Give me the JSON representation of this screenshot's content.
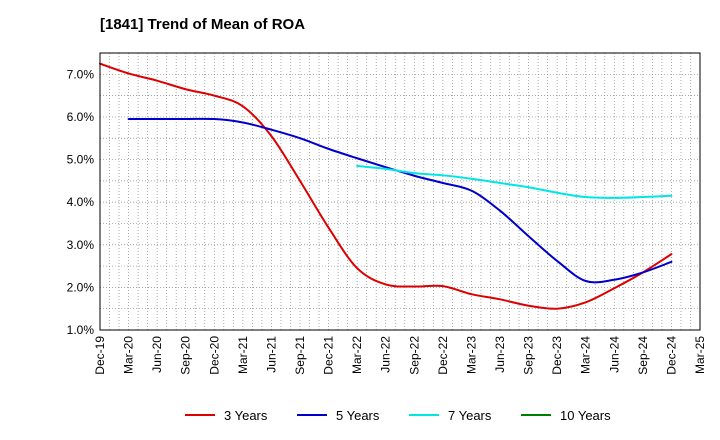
{
  "chart_data": {
    "type": "line",
    "title": "[1841]  Trend of Mean of ROA",
    "xlabel": "",
    "ylabel": "",
    "ylim": [
      1.0,
      7.5
    ],
    "yticks": [
      "1.0%",
      "2.0%",
      "3.0%",
      "4.0%",
      "5.0%",
      "6.0%",
      "7.0%"
    ],
    "ytick_values": [
      1,
      2,
      3,
      4,
      5,
      6,
      7
    ],
    "grid": true,
    "legend_position": "bottom",
    "categories": [
      "Dec-19",
      "Mar-20",
      "Jun-20",
      "Sep-20",
      "Dec-20",
      "Mar-21",
      "Jun-21",
      "Sep-21",
      "Dec-21",
      "Mar-22",
      "Jun-22",
      "Sep-22",
      "Dec-22",
      "Mar-23",
      "Jun-23",
      "Sep-23",
      "Dec-23",
      "Mar-24",
      "Jun-24",
      "Sep-24",
      "Dec-24",
      "Mar-25"
    ],
    "series": [
      {
        "name": "3 Years",
        "color": "#dd0000",
        "values": [
          7.25,
          7.02,
          6.85,
          6.65,
          6.5,
          6.25,
          5.55,
          4.5,
          3.4,
          2.45,
          2.07,
          2.02,
          2.03,
          1.84,
          1.72,
          1.57,
          1.5,
          1.65,
          1.98,
          2.35,
          2.78,
          null
        ]
      },
      {
        "name": "5 Years",
        "color": "#0000cc",
        "values": [
          null,
          5.95,
          5.95,
          5.95,
          5.95,
          5.87,
          5.7,
          5.5,
          5.25,
          5.03,
          4.82,
          4.62,
          4.45,
          4.27,
          3.8,
          3.2,
          2.62,
          2.15,
          2.18,
          2.35,
          2.6,
          null
        ]
      },
      {
        "name": "7 Years",
        "color": "#00e5e5",
        "values": [
          null,
          null,
          null,
          null,
          null,
          null,
          null,
          null,
          null,
          4.85,
          4.78,
          4.68,
          4.63,
          4.55,
          4.45,
          4.35,
          4.22,
          4.12,
          4.1,
          4.12,
          4.15,
          null
        ]
      },
      {
        "name": "10 Years",
        "color": "#008000",
        "values": [
          null,
          null,
          null,
          null,
          null,
          null,
          null,
          null,
          null,
          null,
          null,
          null,
          null,
          null,
          null,
          null,
          null,
          null,
          null,
          null,
          null,
          null
        ]
      }
    ]
  }
}
